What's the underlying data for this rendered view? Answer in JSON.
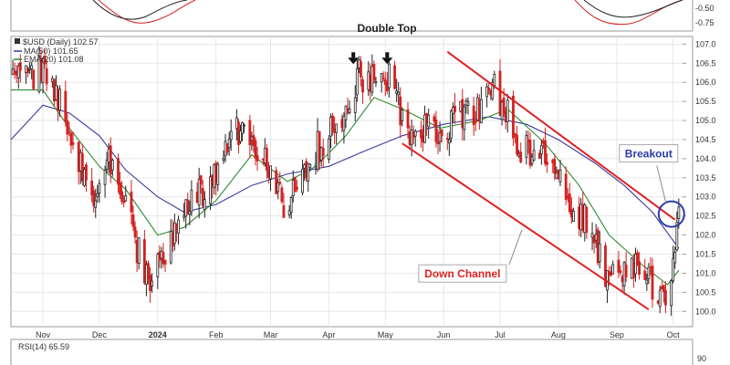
{
  "chart_data": {
    "type": "candlestick",
    "title": "Double Top",
    "legend": [
      {
        "label": "$USD (Daily) 102.57",
        "color": "#333333"
      },
      {
        "label": "MA(50) 101.65",
        "color": "#3a3aa0"
      },
      {
        "label": "EMA(20) 101.08",
        "color": "#2e8b2e"
      }
    ],
    "ylim": [
      99.6,
      107.2
    ],
    "y_ticks": [
      "100.0",
      "100.5",
      "101.0",
      "101.5",
      "102.0",
      "102.5",
      "103.0",
      "103.5",
      "104.0",
      "104.5",
      "105.0",
      "105.5",
      "106.0",
      "106.5",
      "107.0"
    ],
    "y_tick_values": [
      100.0,
      100.5,
      101.0,
      101.5,
      102.0,
      102.5,
      103.0,
      103.5,
      104.0,
      104.5,
      105.0,
      105.5,
      106.0,
      106.5,
      107.0
    ],
    "x_range": [
      "2023-10-15",
      "2024-10-06"
    ],
    "x_ticks": [
      {
        "label": "Nov",
        "date": "2023-11-01",
        "bold": false
      },
      {
        "label": "Dec",
        "date": "2023-12-01",
        "bold": false
      },
      {
        "label": "2024",
        "date": "2024-01-01",
        "bold": true
      },
      {
        "label": "Feb",
        "date": "2024-02-01",
        "bold": false
      },
      {
        "label": "Mar",
        "date": "2024-03-01",
        "bold": false
      },
      {
        "label": "Apr",
        "date": "2024-04-01",
        "bold": false
      },
      {
        "label": "May",
        "date": "2024-05-01",
        "bold": false
      },
      {
        "label": "Jun",
        "date": "2024-06-01",
        "bold": false
      },
      {
        "label": "Jul",
        "date": "2024-07-01",
        "bold": false
      },
      {
        "label": "Aug",
        "date": "2024-08-01",
        "bold": false
      },
      {
        "label": "Sep",
        "date": "2024-09-01",
        "bold": false
      },
      {
        "label": "Oct",
        "date": "2024-10-01",
        "bold": false
      }
    ],
    "price_path": [
      [
        "2023-10-15",
        106.2
      ],
      [
        "2023-10-25",
        106.0
      ],
      [
        "2023-11-01",
        106.4
      ],
      [
        "2023-11-10",
        105.6
      ],
      [
        "2023-11-20",
        104.0
      ],
      [
        "2023-11-28",
        102.8
      ],
      [
        "2023-12-05",
        104.0
      ],
      [
        "2023-12-12",
        103.3
      ],
      [
        "2023-12-20",
        101.8
      ],
      [
        "2023-12-28",
        100.7
      ],
      [
        "2024-01-05",
        101.6
      ],
      [
        "2024-01-12",
        102.2
      ],
      [
        "2024-01-20",
        103.0
      ],
      [
        "2024-01-30",
        103.4
      ],
      [
        "2024-02-05",
        104.2
      ],
      [
        "2024-02-14",
        104.8
      ],
      [
        "2024-02-22",
        104.0
      ],
      [
        "2024-03-01",
        103.8
      ],
      [
        "2024-03-08",
        102.8
      ],
      [
        "2024-03-15",
        103.4
      ],
      [
        "2024-03-22",
        104.0
      ],
      [
        "2024-04-01",
        104.7
      ],
      [
        "2024-04-10",
        105.0
      ],
      [
        "2024-04-16",
        106.2
      ],
      [
        "2024-04-22",
        106.1
      ],
      [
        "2024-05-01",
        106.3
      ],
      [
        "2024-05-08",
        105.4
      ],
      [
        "2024-05-16",
        104.6
      ],
      [
        "2024-05-23",
        104.9
      ],
      [
        "2024-05-31",
        104.6
      ],
      [
        "2024-06-10",
        105.1
      ],
      [
        "2024-06-20",
        105.2
      ],
      [
        "2024-06-27",
        105.9
      ],
      [
        "2024-07-05",
        105.2
      ],
      [
        "2024-07-12",
        104.2
      ],
      [
        "2024-07-20",
        104.3
      ],
      [
        "2024-07-29",
        104.2
      ],
      [
        "2024-08-05",
        103.0
      ],
      [
        "2024-08-15",
        102.4
      ],
      [
        "2024-08-27",
        100.9
      ],
      [
        "2024-09-06",
        101.2
      ],
      [
        "2024-09-13",
        101.0
      ],
      [
        "2024-09-20",
        100.7
      ],
      [
        "2024-09-27",
        100.4
      ],
      [
        "2024-10-01",
        101.0
      ],
      [
        "2024-10-04",
        102.6
      ]
    ],
    "ma50_path": [
      [
        "2023-10-15",
        104.5
      ],
      [
        "2023-11-01",
        105.4
      ],
      [
        "2023-11-15",
        105.2
      ],
      [
        "2023-12-01",
        104.6
      ],
      [
        "2023-12-15",
        103.7
      ],
      [
        "2024-01-01",
        103.0
      ],
      [
        "2024-01-15",
        102.6
      ],
      [
        "2024-02-01",
        102.8
      ],
      [
        "2024-02-20",
        103.3
      ],
      [
        "2024-03-10",
        103.6
      ],
      [
        "2024-04-01",
        103.8
      ],
      [
        "2024-04-20",
        104.2
      ],
      [
        "2024-05-10",
        104.6
      ],
      [
        "2024-06-01",
        104.9
      ],
      [
        "2024-06-25",
        105.1
      ],
      [
        "2024-07-15",
        104.9
      ],
      [
        "2024-08-01",
        104.5
      ],
      [
        "2024-08-20",
        103.9
      ],
      [
        "2024-09-05",
        103.3
      ],
      [
        "2024-09-20",
        102.6
      ],
      [
        "2024-10-04",
        101.65
      ]
    ],
    "ema20_path": [
      [
        "2023-10-15",
        105.8
      ],
      [
        "2023-11-01",
        105.8
      ],
      [
        "2023-11-15",
        104.8
      ],
      [
        "2023-12-01",
        103.8
      ],
      [
        "2023-12-15",
        103.2
      ],
      [
        "2024-01-01",
        102.0
      ],
      [
        "2024-01-15",
        102.2
      ],
      [
        "2024-02-01",
        102.9
      ],
      [
        "2024-02-20",
        104.1
      ],
      [
        "2024-03-10",
        103.4
      ],
      [
        "2024-03-25",
        103.8
      ],
      [
        "2024-04-10",
        104.6
      ],
      [
        "2024-04-25",
        105.6
      ],
      [
        "2024-05-10",
        105.3
      ],
      [
        "2024-05-30",
        104.8
      ],
      [
        "2024-06-20",
        105.0
      ],
      [
        "2024-07-05",
        105.3
      ],
      [
        "2024-07-25",
        104.4
      ],
      [
        "2024-08-12",
        103.3
      ],
      [
        "2024-08-28",
        102.0
      ],
      [
        "2024-09-15",
        101.2
      ],
      [
        "2024-09-28",
        100.7
      ],
      [
        "2024-10-04",
        101.08
      ]
    ],
    "channel_upper": [
      [
        "2024-06-03",
        106.8
      ],
      [
        "2024-10-02",
        102.4
      ]
    ],
    "channel_lower": [
      [
        "2024-05-10",
        104.4
      ],
      [
        "2024-09-18",
        100.05
      ]
    ],
    "annotations": {
      "double_top_arrows": [
        {
          "date": "2024-04-14",
          "value": 106.5
        },
        {
          "date": "2024-05-02",
          "value": 106.5
        }
      ],
      "breakout": {
        "label": "Breakout",
        "date": "2024-10-03",
        "value": 102.55,
        "color": "#2e3aa6"
      },
      "down_channel": {
        "label": "Down Channel",
        "color": "#e02020"
      }
    },
    "top_panel": {
      "tick_labels": [
        "-0.50",
        "-0.75"
      ]
    },
    "rsi_panel": {
      "label": "RSI(14) 65.59",
      "tick_labels": [
        "90"
      ]
    }
  },
  "colors": {
    "up": "#222222",
    "down": "#d42020",
    "ma50": "#3a3aa0",
    "ema20": "#2e8b2e",
    "channel": "#e02020",
    "grid": "#e6e6e6"
  }
}
